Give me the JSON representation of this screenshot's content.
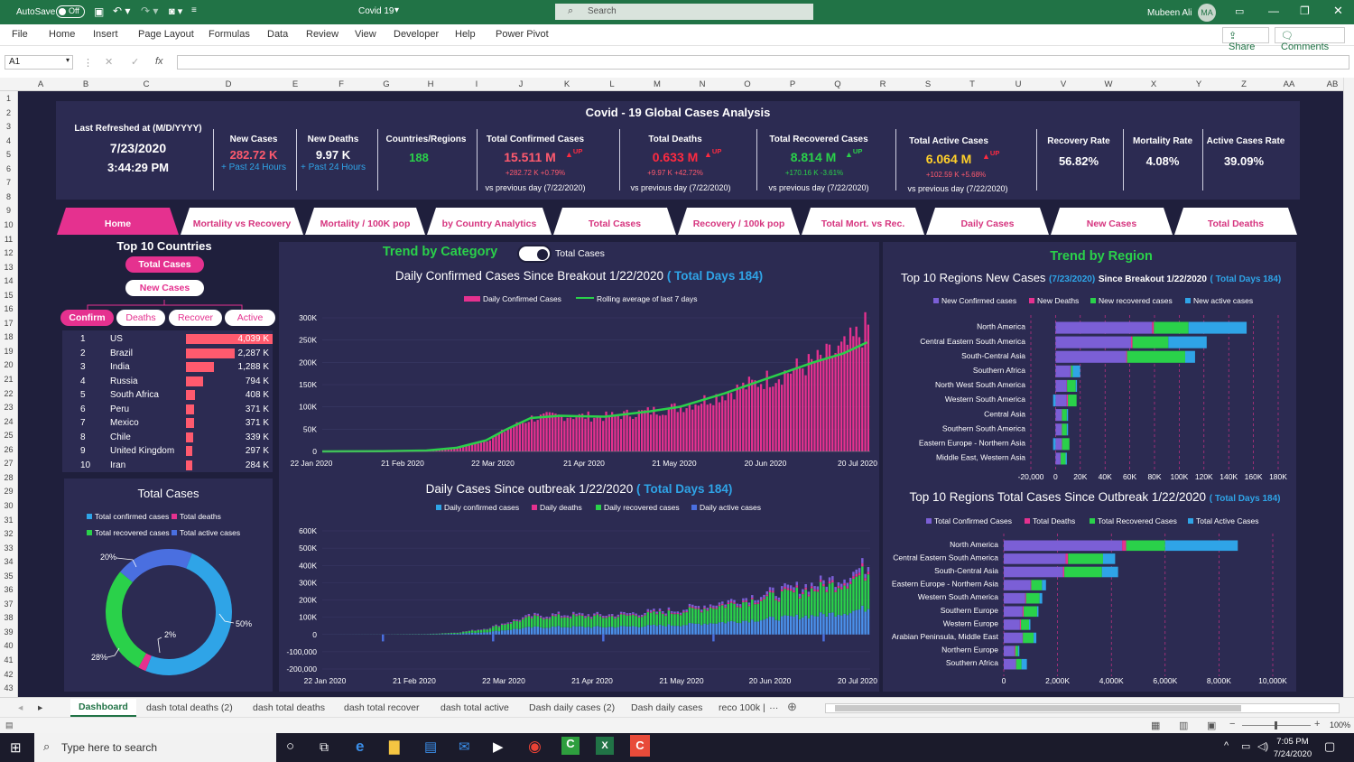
{
  "window": {
    "autosave_label": "AutoSave",
    "autosave_state": "Off",
    "doc_title": "Covid 19",
    "search_placeholder": "Search",
    "user_name": "Mubeen Ali",
    "user_initials": "MA"
  },
  "menu": {
    "items": [
      "File",
      "Home",
      "Insert",
      "Page Layout",
      "Formulas",
      "Data",
      "Review",
      "View",
      "Developer",
      "Help",
      "Power Pivot"
    ],
    "share": "Share",
    "comments": "Comments"
  },
  "formula": {
    "cell_ref": "A1",
    "fx": "fx"
  },
  "columns": [
    "A",
    "B",
    "C",
    "D",
    "E",
    "F",
    "G",
    "H",
    "I",
    "J",
    "K",
    "L",
    "M",
    "N",
    "O",
    "P",
    "Q",
    "R",
    "S",
    "T",
    "U",
    "V",
    "W",
    "X",
    "Y",
    "Z",
    "AA",
    "AB"
  ],
  "rows": [
    "1",
    "2",
    "3",
    "4",
    "5",
    "6",
    "7",
    "8",
    "9",
    "10",
    "11",
    "12",
    "13",
    "14",
    "15",
    "16",
    "17",
    "18",
    "19",
    "20",
    "21",
    "22",
    "23",
    "24",
    "25",
    "26",
    "27",
    "28",
    "29",
    "30",
    "31",
    "32",
    "33",
    "34",
    "35",
    "36",
    "37",
    "38",
    "39",
    "40",
    "41",
    "42",
    "43"
  ],
  "dashboard": {
    "title": "Covid - 19 Global Cases Analysis",
    "refresh_label": "Last Refreshed at  (M/D/YYYY)",
    "refresh_date": "7/23/2020",
    "refresh_time": "3:44:29 PM",
    "new_cases": {
      "label": "New Cases",
      "value": "282.72 K",
      "sub": "+ Past 24 Hours"
    },
    "new_deaths": {
      "label": "New Deaths",
      "value": "9.97 K",
      "sub": "+ Past 24 Hours"
    },
    "countries": {
      "label": "Countries/Regions",
      "value": "188"
    },
    "confirmed": {
      "label": "Total Confirmed Cases",
      "value": "15.511 M",
      "trend": "UP",
      "delta": "+282.72 K   +0.79%",
      "vs": "vs previous day (7/22/2020)"
    },
    "deaths": {
      "label": "Total Deaths",
      "value": "0.633 M",
      "trend": "UP",
      "delta": "+9.97 K   +42.72%",
      "vs": "vs previous day (7/22/2020)"
    },
    "recovered": {
      "label": "Total Recovered Cases",
      "value": "8.814 M",
      "trend": "UP",
      "delta": "+170.16 K   -3.61%",
      "vs": "vs previous day (7/22/2020)"
    },
    "active": {
      "label": "Total Active Cases",
      "value": "6.064 M",
      "trend": "UP",
      "delta": "+102.59 K   +5.68%",
      "vs": "vs previous day (7/22/2020)"
    },
    "recovery_rate": {
      "label": "Recovery Rate",
      "value": "56.82%"
    },
    "mortality_rate": {
      "label": "Mortality Rate",
      "value": "4.08%"
    },
    "active_rate": {
      "label": "Active Cases Rate",
      "value": "39.09%"
    },
    "tabs": [
      "Home",
      "Mortality vs Recovery",
      "Mortality / 100K pop",
      "by Country Analytics",
      "Total Cases",
      "Recovery / 100k pop",
      "Total Mort. vs Rec.",
      "Daily Cases",
      "New Cases",
      "Total Deaths"
    ],
    "top10": {
      "title": "Top 10 Countries",
      "btn_total": "Total Cases",
      "btn_new": "New Cases",
      "filters": [
        "Confirm",
        "Deaths",
        "Recover",
        "Active"
      ],
      "rows": [
        {
          "rank": "1",
          "country": "US",
          "value": "4,039 K",
          "num": 4039
        },
        {
          "rank": "2",
          "country": "Brazil",
          "value": "2,287 K",
          "num": 2287
        },
        {
          "rank": "3",
          "country": "India",
          "value": "1,288 K",
          "num": 1288
        },
        {
          "rank": "4",
          "country": "Russia",
          "value": "794 K",
          "num": 794
        },
        {
          "rank": "5",
          "country": "South Africa",
          "value": "408 K",
          "num": 408
        },
        {
          "rank": "6",
          "country": "Peru",
          "value": "371 K",
          "num": 371
        },
        {
          "rank": "7",
          "country": "Mexico",
          "value": "371 K",
          "num": 371
        },
        {
          "rank": "8",
          "country": "Chile",
          "value": "339 K",
          "num": 339
        },
        {
          "rank": "9",
          "country": "United Kingdom",
          "value": "297 K",
          "num": 297
        },
        {
          "rank": "10",
          "country": "Iran",
          "value": "284 K",
          "num": 284
        }
      ]
    },
    "trend_category": "Trend by Category",
    "toggle_label": "Total Cases",
    "trend_region": "Trend by Region",
    "donut": {
      "title": "Total Cases",
      "legend": [
        "Total confirmed cases",
        "Total deaths",
        "Total recovered cases",
        "Total active cases"
      ],
      "labels": [
        "20%",
        "2%",
        "28%",
        "50%"
      ]
    }
  },
  "chart_data": [
    {
      "type": "bar",
      "title": "Daily Confirmed Cases Since Breakout 1/22/2020",
      "title_hl": "( Total Days 184)",
      "legend": [
        "Daily Confirmed Cases",
        "Rolling average of last 7 days"
      ],
      "x_ticks": [
        "22 Jan 2020",
        "21 Feb 2020",
        "22 Mar 2020",
        "21 Apr 2020",
        "21 May 2020",
        "20 Jun 2020",
        "20 Jul 2020"
      ],
      "y_ticks": [
        "0",
        "50K",
        "100K",
        "150K",
        "200K",
        "250K",
        "300K"
      ],
      "ylim": [
        0,
        300000
      ],
      "series": [
        {
          "name": "Daily Confirmed Cases",
          "points": [
            [
              0,
              0
            ],
            [
              20,
              500
            ],
            [
              35,
              2000
            ],
            [
              45,
              8000
            ],
            [
              55,
              25000
            ],
            [
              62,
              50000
            ],
            [
              70,
              75000
            ],
            [
              80,
              80000
            ],
            [
              95,
              78000
            ],
            [
              110,
              90000
            ],
            [
              120,
              100000
            ],
            [
              135,
              130000
            ],
            [
              150,
              165000
            ],
            [
              165,
              200000
            ],
            [
              175,
              230000
            ],
            [
              183,
              280000
            ]
          ]
        },
        {
          "name": "Rolling average of last 7 days",
          "points": [
            [
              0,
              0
            ],
            [
              20,
              500
            ],
            [
              35,
              2000
            ],
            [
              45,
              8000
            ],
            [
              55,
              25000
            ],
            [
              62,
              50000
            ],
            [
              70,
              75000
            ],
            [
              80,
              80000
            ],
            [
              95,
              78000
            ],
            [
              110,
              90000
            ],
            [
              120,
              100000
            ],
            [
              135,
              130000
            ],
            [
              150,
              165000
            ],
            [
              165,
              200000
            ],
            [
              175,
              220000
            ],
            [
              183,
              245000
            ]
          ]
        }
      ]
    },
    {
      "type": "bar",
      "title": "Daily Cases Since outbreak 1/22/2020",
      "title_hl": "( Total Days 184)",
      "legend": [
        "Daily confirmed cases",
        "Daily deaths",
        "Daily recovered cases",
        "Daily active cases"
      ],
      "x_ticks": [
        "22 Jan 2020",
        "21 Feb 2020",
        "22 Mar 2020",
        "21 Apr 2020",
        "21 May 2020",
        "20 Jun 2020",
        "20 Jul 2020"
      ],
      "y_ticks": [
        "-200,000",
        "-100,000",
        "0",
        "100K",
        "200K",
        "300K",
        "400K",
        "500K",
        "600K"
      ],
      "ylim": [
        -200000,
        600000
      ]
    },
    {
      "type": "bar",
      "orientation": "horizontal",
      "stacked": true,
      "title": "Top 10 Regions New Cases",
      "title_date": "(7/23/2020)",
      "title_mid": "Since Breakout 1/22/2020",
      "title_hl": "( Total Days 184)",
      "legend": [
        "New Confirmed cases",
        "New Deaths",
        "New recovered cases",
        "New active cases"
      ],
      "x_ticks": [
        "-20,000",
        "0",
        "20K",
        "40K",
        "60K",
        "80K",
        "100K",
        "120K",
        "140K",
        "160K",
        "180K"
      ],
      "xlim": [
        -20000,
        180000
      ],
      "categories": [
        "North America",
        "Central Eastern South America",
        "South-Central Asia",
        "Southern Africa",
        "North West South America",
        "Western South America",
        "Central Asia",
        "Southern South America",
        "Eastern Europe - Northern Asia",
        "Middle East, Western Asia"
      ],
      "series": [
        {
          "name": "New Confirmed cases",
          "values": [
            78000,
            61000,
            57000,
            12000,
            9000,
            9000,
            5000,
            5000,
            5000,
            4000
          ]
        },
        {
          "name": "New Deaths",
          "values": [
            1500,
            1200,
            800,
            400,
            300,
            1000,
            100,
            100,
            200,
            100
          ]
        },
        {
          "name": "New recovered cases",
          "values": [
            28000,
            29000,
            47000,
            1500,
            7000,
            7000,
            4000,
            4000,
            6000,
            4000
          ]
        },
        {
          "name": "New active cases",
          "values": [
            47000,
            31000,
            8000,
            6000,
            1000,
            -2000,
            1000,
            1000,
            -2000,
            1000
          ]
        }
      ]
    },
    {
      "type": "bar",
      "orientation": "horizontal",
      "stacked": true,
      "title": "Top 10 Regions Total  Cases Since Outbreak 1/22/2020",
      "title_hl": "( Total Days 184)",
      "legend": [
        "Total Confirmed Cases",
        "Total Deaths",
        "Total Recovered Cases",
        "Total Active Cases"
      ],
      "x_ticks": [
        "0",
        "2,000K",
        "4,000K",
        "6,000K",
        "8,000K",
        "10,000K"
      ],
      "xlim": [
        0,
        10000000
      ],
      "categories": [
        "North America",
        "Central Eastern South America",
        "South-Central Asia",
        "Eastern Europe - Northern Asia",
        "Western South America",
        "Southern Europe",
        "Western Europe",
        "Arabian Peninsula, Middle East",
        "Northern Europe",
        "Southern Africa"
      ],
      "series": [
        {
          "name": "Total Confirmed Cases",
          "values": [
            4400000,
            2300000,
            2200000,
            1000000,
            800000,
            700000,
            600000,
            700000,
            400000,
            450000
          ]
        },
        {
          "name": "Total Deaths",
          "values": [
            150000,
            90000,
            50000,
            20000,
            30000,
            40000,
            40000,
            10000,
            30000,
            10000
          ]
        },
        {
          "name": "Total Recovered Cases",
          "values": [
            1450000,
            1300000,
            1400000,
            400000,
            500000,
            500000,
            300000,
            400000,
            100000,
            200000
          ]
        },
        {
          "name": "Total Active Cases",
          "values": [
            2700000,
            450000,
            600000,
            150000,
            100000,
            50000,
            50000,
            100000,
            50000,
            200000
          ]
        }
      ]
    },
    {
      "type": "pie",
      "title": "Total Cases",
      "categories": [
        "Total confirmed cases",
        "Total deaths",
        "Total recovered cases",
        "Total active cases"
      ],
      "values": [
        50,
        2,
        28,
        20
      ]
    }
  ],
  "sheet_tabs": [
    "Dashboard",
    "dash total deaths (2)",
    "dash total deaths",
    "dash total recover",
    "dash total active",
    "Dash daily cases (2)",
    "Dash daily cases",
    "reco 100k |"
  ],
  "status": {
    "zoom": "100%"
  },
  "taskbar": {
    "search_placeholder": "Type here to search",
    "time": "7:05 PM",
    "date": "7/24/2020"
  },
  "colors": {
    "excel_green": "#217346",
    "pink": "#e5318f",
    "green": "#2ad14a",
    "blue": "#2fa4e7",
    "purple": "#7b5fd6",
    "bg": "#1f1f3c",
    "panel": "#2c2b52",
    "red": "#ff5a6e"
  }
}
